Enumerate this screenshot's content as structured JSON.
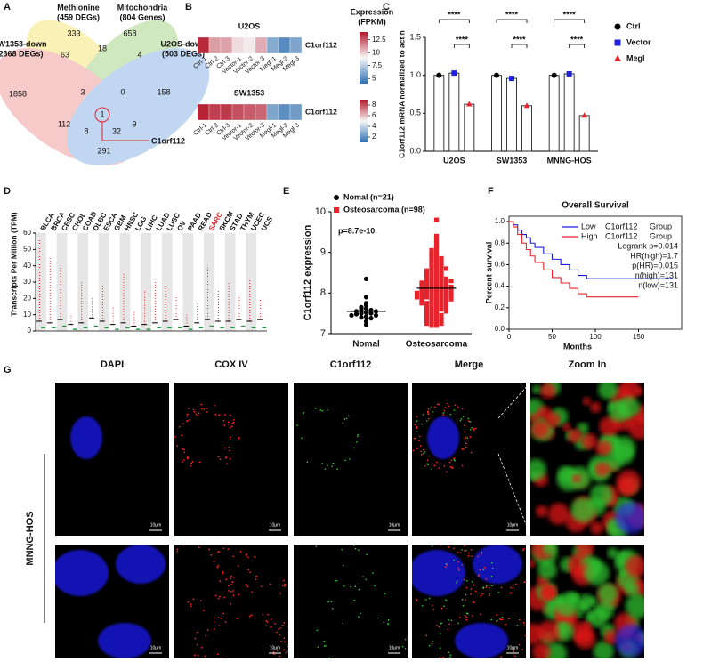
{
  "panel_labels": [
    "A",
    "B",
    "C",
    "D",
    "E",
    "F",
    "G"
  ],
  "venn": {
    "set_names": [
      "Methionine",
      "Mitochondria",
      "SW1353-down",
      "U2OS-down"
    ],
    "set_sizes": [
      "(459 DEGs)",
      "(804 Genes)",
      "(2368 DEGs)",
      "(503 DEGs)"
    ],
    "counts": [
      333,
      658,
      63,
      18,
      4,
      158,
      1858,
      3,
      0,
      112,
      1,
      9,
      8,
      32,
      291
    ],
    "gene": "C1orf112"
  },
  "heatmap": {
    "legend_title": [
      "Expression",
      "(FPKM)"
    ],
    "gene": "C1orf112",
    "samples": [
      "Ctrl-1",
      "Ctrl-2",
      "Ctrl-3",
      "Vector-1",
      "Vector-2",
      "Vector-3",
      "Megl-1",
      "Megl-2",
      "Megl-3"
    ],
    "blocks": [
      {
        "name": "U2OS",
        "values": [
          13.6,
          11.0,
          10.9,
          9.6,
          9.3,
          10.7,
          6.2,
          5.0,
          6.0
        ],
        "zlim": [
          4,
          14
        ],
        "ticks": [
          5,
          7.5,
          10,
          12.5
        ]
      },
      {
        "name": "SW1353",
        "values": [
          8.8,
          8.3,
          8.4,
          8.0,
          7.8,
          7.6,
          2.6,
          1.9,
          2.3
        ],
        "zlim": [
          1,
          9
        ],
        "ticks": [
          2,
          4,
          6,
          8
        ]
      }
    ]
  },
  "bar_chart": {
    "type": "bar",
    "ylabel": "C1orf112 mRNA normalized to actin",
    "categories": [
      "U2OS",
      "SW1353",
      "MNNG-HOS"
    ],
    "series": [
      {
        "name": "Ctrl",
        "color": "#000000",
        "marker": "circle",
        "values": [
          1.0,
          1.0,
          1.0
        ]
      },
      {
        "name": "Vector",
        "color": "#1f1fe0",
        "marker": "square",
        "values": [
          1.03,
          0.96,
          1.02
        ]
      },
      {
        "name": "Megl",
        "color": "#e8232b",
        "marker": "triangle",
        "values": [
          0.62,
          0.6,
          0.47
        ]
      }
    ],
    "ylim": [
      0,
      1.5
    ],
    "yticks": [
      {
        "value": 0,
        "label": "0.0"
      },
      {
        "value": 0.5,
        "label": "0.5"
      },
      {
        "value": 1,
        "label": "1.0"
      },
      {
        "value": 1.5,
        "label": "1.5"
      }
    ],
    "significance": "****"
  },
  "tpm_chart": {
    "type": "dot",
    "ylabel": "Transcripts Per Million (TPM)",
    "categories": [
      "BLCA",
      "BRCA",
      "CESC",
      "CHOL",
      "COAD",
      "DLBC",
      "ESCA",
      "GBM",
      "HNSC",
      "LGG",
      "LIHC",
      "LUAD",
      "LUSC",
      "OV",
      "PAAD",
      "READ",
      "SARC",
      "SKCM",
      "STAD",
      "THYM",
      "UCEC",
      "UCS"
    ],
    "tumor_medians": [
      6,
      5,
      7,
      4,
      5,
      8,
      6,
      4,
      5,
      3,
      4,
      5,
      6,
      7,
      3,
      5,
      7,
      6,
      6,
      7,
      6,
      7
    ],
    "tumor_max": [
      56,
      45,
      40,
      10,
      30,
      20,
      28,
      15,
      35,
      12,
      25,
      30,
      28,
      22,
      10,
      18,
      40,
      25,
      30,
      22,
      32,
      20
    ],
    "normal_medians": [
      2,
      2,
      3,
      1,
      2,
      3,
      2,
      1,
      2,
      1,
      1,
      2,
      2,
      2,
      1,
      2,
      3,
      2,
      2,
      3,
      2,
      2
    ],
    "tumor_color": "#e8232b",
    "normal_color": "#1a9a3a",
    "highlight": "SARC",
    "ylim": [
      0,
      60
    ],
    "yticks": [
      0,
      10,
      20,
      30,
      40,
      50,
      60
    ]
  },
  "scatter": {
    "type": "scatter",
    "ylabel": "C1orf112 expression",
    "categories": [
      "Nomal",
      "Osteosarcoma"
    ],
    "series": [
      {
        "name": "Nomal (n=21)",
        "color": "#000000",
        "marker": "circle",
        "mean": 7.55,
        "values": [
          8.35,
          7.9,
          7.75,
          7.7,
          7.65,
          7.62,
          7.6,
          7.58,
          7.55,
          7.55,
          7.52,
          7.5,
          7.5,
          7.48,
          7.45,
          7.45,
          7.42,
          7.4,
          7.38,
          7.3,
          7.22
        ]
      },
      {
        "name": "Osteosarcoma (n=98)",
        "color": "#e8232b",
        "marker": "square",
        "mean": 8.12,
        "values": [
          9.8,
          9.4,
          9.3,
          9.2,
          9.1,
          9.05,
          9.0,
          8.95,
          8.9,
          8.9,
          8.85,
          8.8,
          8.8,
          8.75,
          8.7,
          8.7,
          8.65,
          8.6,
          8.6,
          8.55,
          8.55,
          8.5,
          8.5,
          8.45,
          8.45,
          8.4,
          8.4,
          8.4,
          8.35,
          8.35,
          8.3,
          8.3,
          8.3,
          8.25,
          8.25,
          8.25,
          8.2,
          8.2,
          8.2,
          8.2,
          8.15,
          8.15,
          8.15,
          8.1,
          8.1,
          8.1,
          8.1,
          8.05,
          8.05,
          8.05,
          8.0,
          8.0,
          8.0,
          8.0,
          7.95,
          7.95,
          7.95,
          7.9,
          7.9,
          7.9,
          7.9,
          7.85,
          7.85,
          7.85,
          7.8,
          7.8,
          7.8,
          7.75,
          7.75,
          7.75,
          7.7,
          7.7,
          7.7,
          7.65,
          7.65,
          7.6,
          7.6,
          7.6,
          7.55,
          7.55,
          7.5,
          7.5,
          7.45,
          7.45,
          7.4,
          7.4,
          7.35,
          7.35,
          7.3,
          7.3,
          7.25,
          7.25,
          7.2,
          7.2,
          8.6,
          8.0,
          7.9,
          8.3
        ]
      }
    ],
    "ylim": [
      7,
      10
    ],
    "yticks": [
      7,
      8,
      9,
      10
    ],
    "annotation": "p=8.7e-10"
  },
  "survival": {
    "type": "line",
    "title": "Overall Survival",
    "xlabel": "Months",
    "ylabel": "Percent survival",
    "legend_gene": "C1orf112",
    "legend_suffix": "Group",
    "series": [
      {
        "name": "Low",
        "color": "#1f1fe0",
        "x": [
          0,
          5,
          10,
          15,
          20,
          25,
          30,
          40,
          50,
          60,
          70,
          80,
          90,
          100,
          190
        ],
        "values": [
          1,
          0.97,
          0.92,
          0.88,
          0.85,
          0.8,
          0.76,
          0.7,
          0.65,
          0.6,
          0.55,
          0.5,
          0.47,
          0.47,
          0.47
        ]
      },
      {
        "name": "High",
        "color": "#e8232b",
        "x": [
          0,
          5,
          10,
          15,
          20,
          25,
          30,
          40,
          50,
          60,
          70,
          80,
          90,
          150
        ],
        "values": [
          1,
          0.95,
          0.88,
          0.8,
          0.74,
          0.68,
          0.62,
          0.55,
          0.48,
          0.43,
          0.38,
          0.33,
          0.3,
          0.3
        ]
      }
    ],
    "annotations": [
      "Logrank p=0.014",
      "HR(high)=1.7",
      "p(HR)=0.015",
      "n(high)=131",
      "n(low)=131"
    ],
    "xlim": [
      0,
      200
    ],
    "xticks": [
      0,
      50,
      100,
      150
    ],
    "ylim": [
      0,
      1.05
    ],
    "yticks": [
      {
        "value": 0,
        "label": "0.0"
      },
      {
        "value": 0.2,
        "label": "0.2"
      },
      {
        "value": 0.4,
        "label": "0.4"
      },
      {
        "value": 0.6,
        "label": "0.6"
      },
      {
        "value": 0.8,
        "label": "0.8"
      },
      {
        "value": 1,
        "label": "1.0"
      }
    ]
  },
  "microscopy": {
    "columns": [
      "DAPI",
      "COX IV",
      "C1orf112",
      "Merge",
      "Zoom In"
    ],
    "row_label": "MNNG-HOS",
    "scale_bar": "10μm"
  }
}
